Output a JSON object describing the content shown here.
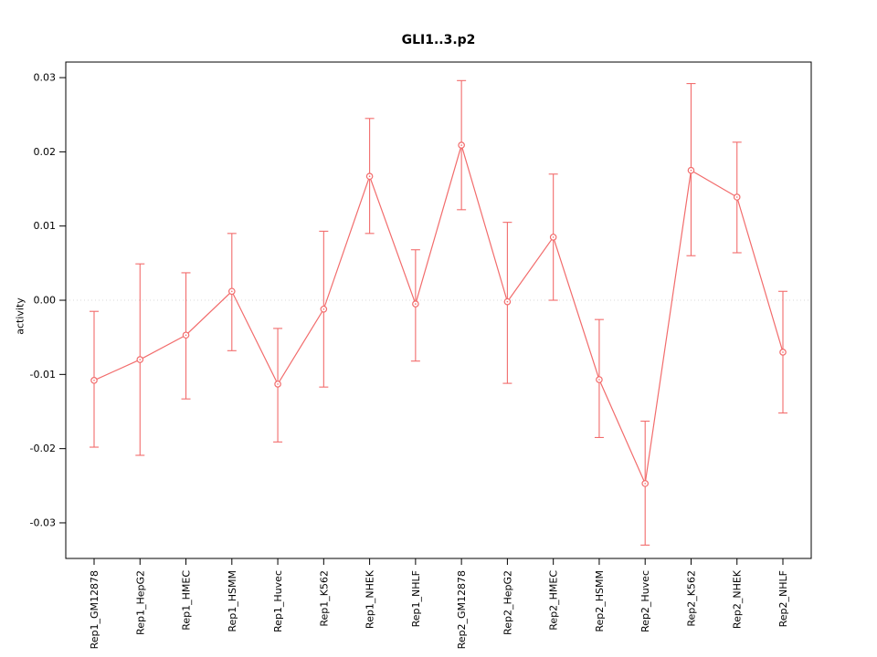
{
  "chart_data": {
    "type": "line",
    "title": "GLI1..3.p2",
    "xlabel": "",
    "ylabel": "activity",
    "categories": [
      "Rep1_GM12878",
      "Rep1_HepG2",
      "Rep1_HMEC",
      "Rep1_HSMM",
      "Rep1_Huvec",
      "Rep1_K562",
      "Rep1_NHEK",
      "Rep1_NHLF",
      "Rep2_GM12878",
      "Rep2_HepG2",
      "Rep2_HMEC",
      "Rep2_HSMM",
      "Rep2_Huvec",
      "Rep2_K562",
      "Rep2_NHEK",
      "Rep2_NHLF"
    ],
    "values": [
      -0.0108,
      -0.008,
      -0.0047,
      0.0012,
      -0.0113,
      -0.0012,
      0.0167,
      -0.0005,
      0.0209,
      -0.0002,
      0.0085,
      -0.0107,
      -0.0247,
      0.0175,
      0.0139,
      -0.007
    ],
    "error_low": [
      -0.0198,
      -0.0209,
      -0.0133,
      -0.0068,
      -0.0191,
      -0.0117,
      0.009,
      -0.0082,
      0.0122,
      -0.0112,
      0.0,
      -0.0185,
      -0.033,
      0.006,
      0.0064,
      -0.0152
    ],
    "error_high": [
      -0.0015,
      0.0049,
      0.0037,
      0.009,
      -0.0038,
      0.0093,
      0.0245,
      0.0068,
      0.0296,
      0.0105,
      0.017,
      -0.0026,
      -0.0163,
      0.0292,
      0.0213,
      0.0012
    ],
    "ylim": [
      -0.0348,
      0.0321
    ],
    "yticks": [
      -0.03,
      -0.02,
      -0.01,
      0,
      0.01,
      0.02,
      0.03
    ],
    "grid": false,
    "legend": "none",
    "zero_line": 0,
    "marker": "open-circle",
    "line_color": "#f26c6c",
    "zero_line_color": "#d9d9d9",
    "axis_color": "#000000"
  }
}
